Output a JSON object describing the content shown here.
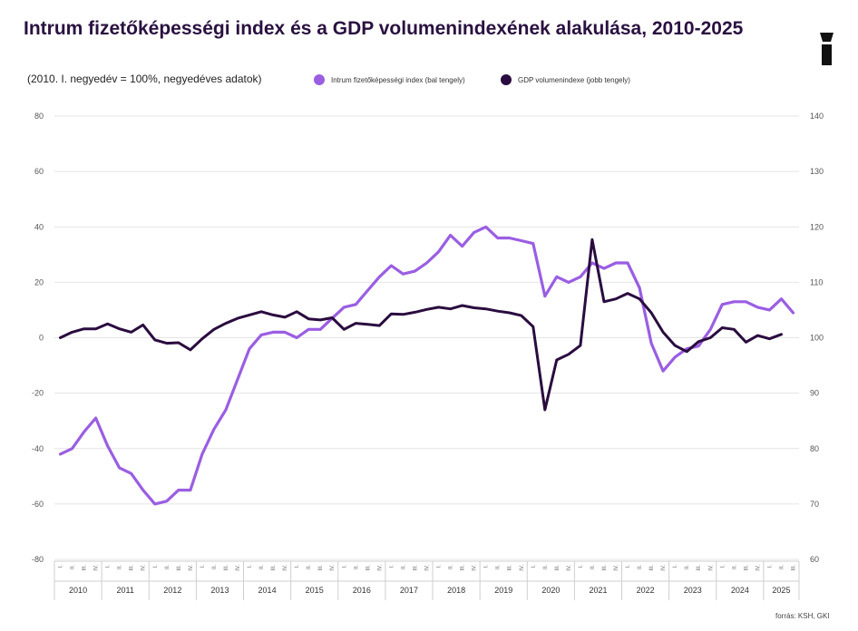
{
  "header": {
    "title": "Intrum fizetőképességi index és a GDP volumenindexének alakulása, 2010-2025",
    "subtitle": "(2010. I. negyedév = 100%, negyedéves adatok)",
    "source": "forrás: KSH, GKI",
    "logo_icon": "i-logo-icon"
  },
  "chart_data": {
    "type": "line",
    "title": "Intrum fizetőképességi index és a GDP volumenindexének alakulása, 2010-2025",
    "subtitle": "(2010. I. negyedév = 100%, negyedéves adatok)",
    "legend_position": "top",
    "grid": true,
    "y_left": {
      "range": [
        -80,
        80
      ],
      "ticks": [
        "80",
        "60",
        "40",
        "20",
        "0",
        "-20",
        "-40",
        "-60",
        "-80"
      ]
    },
    "y_right": {
      "range": [
        60,
        140
      ],
      "ticks": [
        "140",
        "130",
        "120",
        "110",
        "100",
        "90",
        "80",
        "70",
        "60"
      ]
    },
    "x": {
      "years": [
        "2010",
        "2011",
        "2012",
        "2013",
        "2014",
        "2015",
        "2016",
        "2017",
        "2018",
        "2019",
        "2020",
        "2021",
        "2022",
        "2023",
        "2024",
        "2025"
      ],
      "quarters": [
        "I.",
        "II.",
        "III.",
        "IV."
      ],
      "last_year_quarters": 3
    },
    "series": [
      {
        "name": "Intrum fizetőképességi index (bal tengely)",
        "axis": "left",
        "color": "#9a5ee2",
        "values": [
          -42,
          -40,
          -34,
          -29,
          -39,
          -47,
          -49,
          -55,
          -60,
          -59,
          -55,
          -55,
          -42,
          -33,
          -26,
          -15,
          -4,
          1,
          2,
          2,
          0,
          3,
          3,
          7,
          11,
          12,
          17,
          22,
          26,
          23,
          24,
          27,
          31,
          37,
          33,
          38,
          40,
          36,
          36,
          35,
          34,
          15,
          22,
          20,
          22,
          27,
          25,
          27,
          27,
          18,
          -2,
          -12,
          -7,
          -4,
          -3,
          3,
          12,
          13,
          13,
          11,
          10,
          14,
          9
        ]
      },
      {
        "name": "GDP volumenindexe (jobb tengely)",
        "axis": "right",
        "color": "#2a0c3f",
        "values": [
          100,
          101,
          101.6,
          101.6,
          102.5,
          101.6,
          101,
          102.3,
          99.6,
          99,
          99.1,
          97.8,
          99.8,
          101.5,
          102.6,
          103.5,
          104.1,
          104.7,
          104.1,
          103.7,
          104.7,
          103.4,
          103.2,
          103.6,
          101.5,
          102.6,
          102.4,
          102.2,
          104.3,
          104.2,
          104.6,
          105.1,
          105.5,
          105.2,
          105.8,
          105.4,
          105.2,
          104.8,
          104.5,
          104,
          102,
          87,
          96,
          97,
          98.6,
          117.7,
          106.5,
          107,
          108,
          107,
          104.5,
          101,
          98.6,
          97.5,
          99.3,
          100,
          101.8,
          101.5,
          99.2,
          100.4,
          99.8,
          100.6
        ]
      }
    ]
  }
}
